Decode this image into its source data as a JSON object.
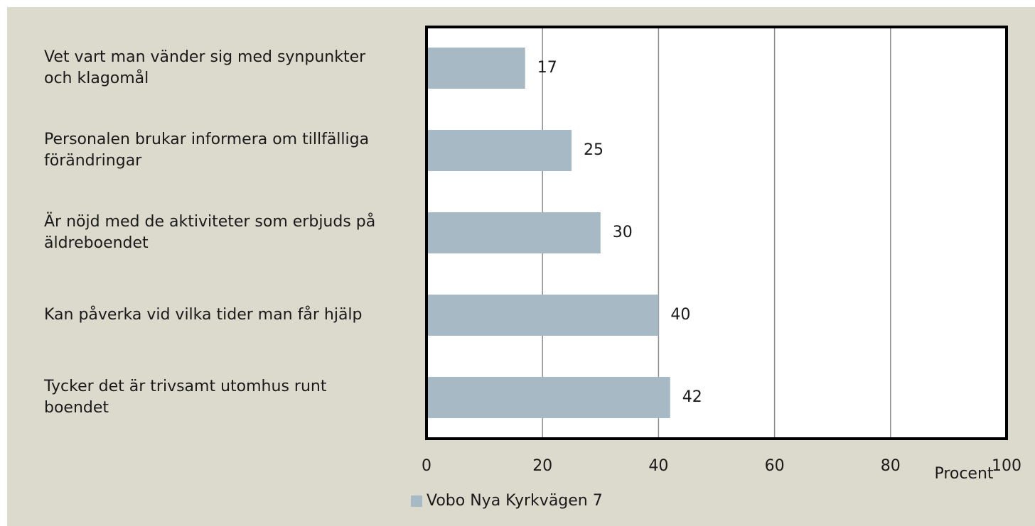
{
  "chart_data": {
    "type": "bar",
    "orientation": "horizontal",
    "categories": [
      "Vet vart man vänder sig med synpunkter och klagomål",
      "Personalen brukar informera om tillfälliga förändringar",
      "Är nöjd med de aktiviteter som erbjuds på äldreboendet",
      "Kan påverka vid vilka tider man får hjälp",
      "Tycker det är trivsamt utomhus runt boendet"
    ],
    "series": [
      {
        "name": "Vobo Nya Kyrkvägen 7",
        "color": "#a7b9c4",
        "values": [
          17,
          25,
          30,
          40,
          42
        ]
      }
    ],
    "x_label": "Procent",
    "xlim": [
      0,
      100
    ],
    "xticks": [
      0,
      20,
      40,
      60,
      80,
      100
    ],
    "grid": true,
    "legend": "bottom"
  }
}
